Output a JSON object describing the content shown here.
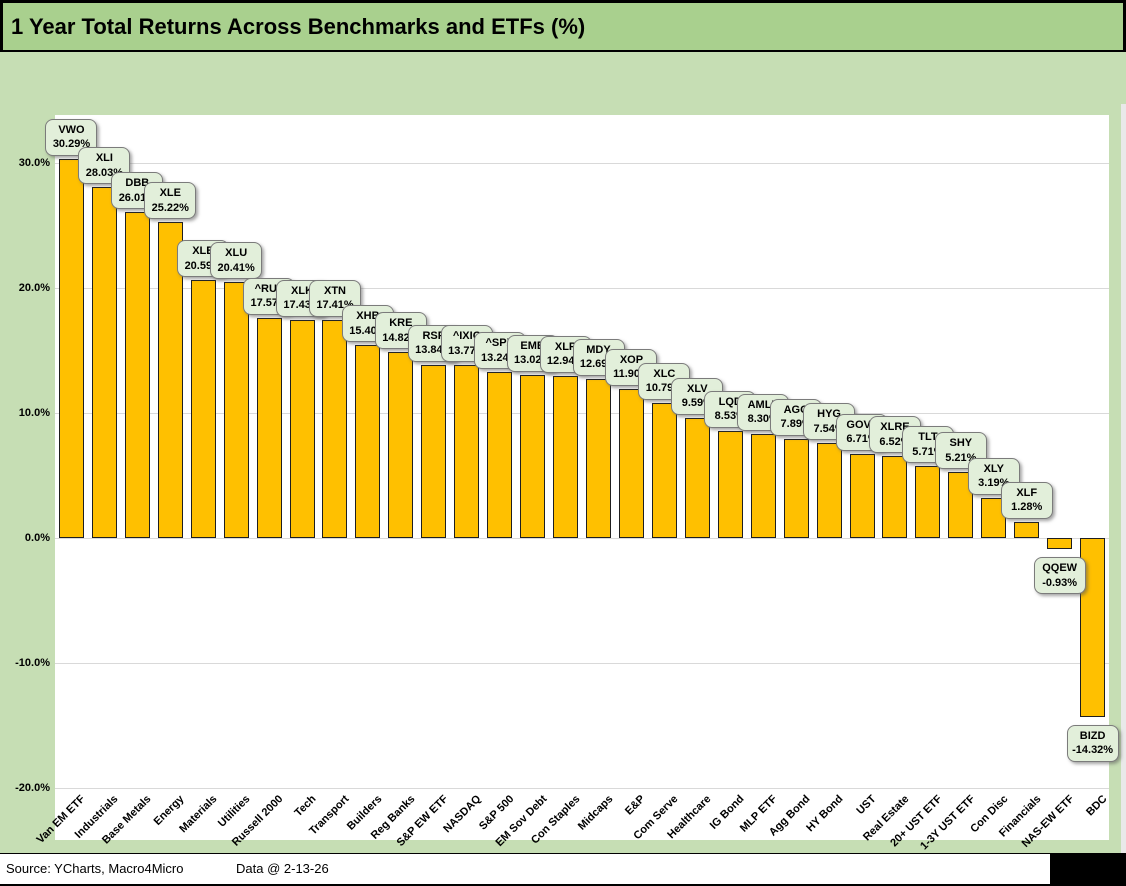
{
  "title": "1 Year Total Returns Across Benchmarks and ETFs (%)",
  "footer": {
    "source": "Source: YCharts, Macro4Micro",
    "data_date": "Data @ 2-13-26"
  },
  "colors": {
    "title_bar_bg": "#a9d08e",
    "chart_bg": "#c6deb4",
    "plot_bg": "#ffffff",
    "bar_fill": "#ffc000",
    "bar_border": "#1f1f1f",
    "callout_bg": "#e2efda",
    "callout_border": "#7b7b7b",
    "gridline": "#d9d9d9",
    "text": "#000000"
  },
  "chart_data": {
    "type": "bar",
    "title": "1 Year Total Returns Across Benchmarks and ETFs (%)",
    "xlabel": "",
    "ylabel": "",
    "ylim": [
      -20,
      38
    ],
    "grid": true,
    "value_suffix": "%",
    "yticks": [
      {
        "value": 30,
        "label": "30.0%"
      },
      {
        "value": 20,
        "label": "20.0%"
      },
      {
        "value": 10,
        "label": "10.0%"
      },
      {
        "value": 0,
        "label": "0.0%"
      },
      {
        "value": -10,
        "label": "-10.0%"
      },
      {
        "value": -20,
        "label": "-20.0%"
      }
    ],
    "points": [
      {
        "category": "Van EM ETF",
        "ticker": "VWO",
        "value": 30.29,
        "label": "30.29%"
      },
      {
        "category": "Industrials",
        "ticker": "XLI",
        "value": 28.03,
        "label": "28.03%"
      },
      {
        "category": "Base Metals",
        "ticker": "DBB",
        "value": 26.01,
        "label": "26.01%"
      },
      {
        "category": "Energy",
        "ticker": "XLE",
        "value": 25.22,
        "label": "25.22%"
      },
      {
        "category": "Materials",
        "ticker": "XLB",
        "value": 20.59,
        "label": "20.59%"
      },
      {
        "category": "Utilities",
        "ticker": "XLU",
        "value": 20.41,
        "label": "20.41%"
      },
      {
        "category": "Russell 2000",
        "ticker": "^RUT",
        "value": 17.57,
        "label": "17.57%"
      },
      {
        "category": "Tech",
        "ticker": "XLK",
        "value": 17.43,
        "label": "17.43%"
      },
      {
        "category": "Transport",
        "ticker": "XTN",
        "value": 17.41,
        "label": "17.41%"
      },
      {
        "category": "Builders",
        "ticker": "XHB",
        "value": 15.4,
        "label": "15.40%"
      },
      {
        "category": "Reg Banks",
        "ticker": "KRE",
        "value": 14.82,
        "label": "14.82%"
      },
      {
        "category": "S&P EW ETF",
        "ticker": "RSP",
        "value": 13.84,
        "label": "13.84%"
      },
      {
        "category": "NASDAQ",
        "ticker": "^IXIC",
        "value": 13.77,
        "label": "13.77%"
      },
      {
        "category": "S&P 500",
        "ticker": "^SPX",
        "value": 13.24,
        "label": "13.24%"
      },
      {
        "category": "EM Sov Debt",
        "ticker": "EMB",
        "value": 13.02,
        "label": "13.02%"
      },
      {
        "category": "Con Staples",
        "ticker": "XLP",
        "value": 12.94,
        "label": "12.94%"
      },
      {
        "category": "Midcaps",
        "ticker": "MDY",
        "value": 12.69,
        "label": "12.69%"
      },
      {
        "category": "E&P",
        "ticker": "XOP",
        "value": 11.9,
        "label": "11.90%"
      },
      {
        "category": "Com Serve",
        "ticker": "XLC",
        "value": 10.79,
        "label": "10.79%"
      },
      {
        "category": "Healthcare",
        "ticker": "XLV",
        "value": 9.59,
        "label": "9.59%"
      },
      {
        "category": "IG Bond",
        "ticker": "LQD",
        "value": 8.53,
        "label": "8.53%"
      },
      {
        "category": "MLP ETF",
        "ticker": "AMLP",
        "value": 8.3,
        "label": "8.30%"
      },
      {
        "category": "Agg Bond",
        "ticker": "AGG",
        "value": 7.89,
        "label": "7.89%"
      },
      {
        "category": "HY Bond",
        "ticker": "HYG",
        "value": 7.54,
        "label": "7.54%"
      },
      {
        "category": "UST",
        "ticker": "GOVT",
        "value": 6.71,
        "label": "6.71%"
      },
      {
        "category": "Real Estate",
        "ticker": "XLRE",
        "value": 6.52,
        "label": "6.52%"
      },
      {
        "category": "20+ UST ETF",
        "ticker": "TLT",
        "value": 5.71,
        "label": "5.71%"
      },
      {
        "category": "1-3Y UST ETF",
        "ticker": "SHY",
        "value": 5.21,
        "label": "5.21%"
      },
      {
        "category": "Con Disc",
        "ticker": "XLY",
        "value": 3.19,
        "label": "3.19%"
      },
      {
        "category": "Financials",
        "ticker": "XLF",
        "value": 1.28,
        "label": "1.28%"
      },
      {
        "category": "NAS-EW ETF",
        "ticker": "QQEW",
        "value": -0.93,
        "label": "-0.93%"
      },
      {
        "category": "BDC",
        "ticker": "BIZD",
        "value": -14.32,
        "label": "-14.32%"
      }
    ]
  }
}
